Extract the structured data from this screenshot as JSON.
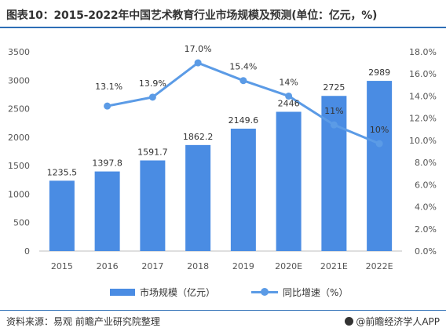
{
  "title": "图表10：2015-2022年中国艺术教育行业市场规模及预测(单位：亿元，%)",
  "source": "资料来源：易观 前瞻产业研究院整理",
  "brand": "@前瞻经济学人APP",
  "colors": {
    "bar": "#4a8ce3",
    "line": "#5b9be6",
    "rule": "#2e6fb6"
  },
  "chart_data": {
    "type": "bar",
    "categories": [
      "2015",
      "2016",
      "2017",
      "2018",
      "2019",
      "2020E",
      "2021E",
      "2022E"
    ],
    "series": [
      {
        "name": "市场规模（亿元）",
        "type": "bar",
        "axis": "left",
        "values": [
          1235.5,
          1397.8,
          1591.7,
          1862.2,
          2149.6,
          2446,
          2725,
          2989
        ],
        "labels": [
          "1235.5",
          "1397.8",
          "1591.7",
          "1862.2",
          "2149.6",
          "2446",
          "2725",
          "2989"
        ]
      },
      {
        "name": "同比增速（%）",
        "type": "line",
        "axis": "right",
        "values": [
          null,
          13.1,
          13.9,
          17.0,
          15.4,
          14,
          11,
          10
        ],
        "plot_values": [
          null,
          13.1,
          13.9,
          17.0,
          15.4,
          14.0,
          11.4,
          9.7
        ],
        "labels": [
          null,
          "13.1%",
          "13.9%",
          "17.0%",
          "15.4%",
          "14%",
          "11%",
          "10%"
        ]
      }
    ],
    "y_left": {
      "min": 0,
      "max": 3500,
      "ticks": [
        "0",
        "500",
        "1000",
        "1500",
        "2000",
        "2500",
        "3000",
        "3500"
      ]
    },
    "y_right": {
      "min": 0,
      "max": 18,
      "ticks": [
        "0.0%",
        "2.0%",
        "4.0%",
        "6.0%",
        "8.0%",
        "10.0%",
        "12.0%",
        "14.0%",
        "16.0%",
        "18.0%"
      ]
    },
    "grid": false,
    "legend_position": "bottom"
  }
}
